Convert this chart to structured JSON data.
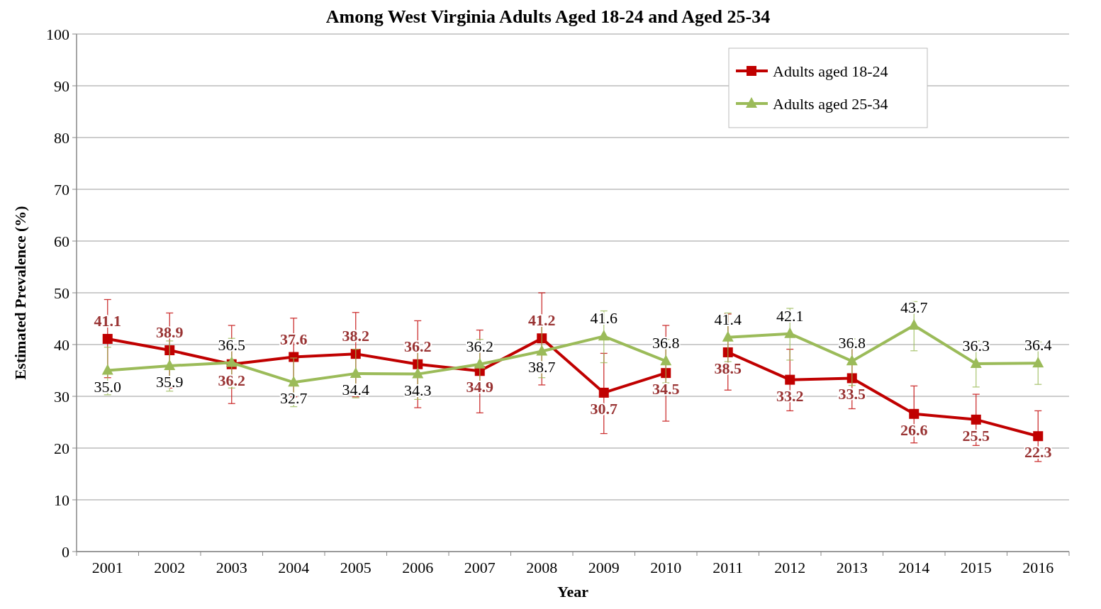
{
  "chart_data": {
    "type": "line",
    "title": "Among West Virginia Adults Aged 18-24 and Aged 25-34",
    "xlabel": "Year",
    "ylabel": "Estimated Prevalence (%)",
    "categories": [
      "2001",
      "2002",
      "2003",
      "2004",
      "2005",
      "2006",
      "2007",
      "2008",
      "2009",
      "2010",
      "2011",
      "2012",
      "2013",
      "2014",
      "2015",
      "2016"
    ],
    "series": [
      {
        "name": "Adults aged 18-24",
        "color": "#c00000",
        "marker": "square",
        "values": [
          41.1,
          38.9,
          36.2,
          37.6,
          38.2,
          36.2,
          34.9,
          41.2,
          30.7,
          34.5,
          null,
          null,
          null,
          null,
          null,
          null
        ],
        "value_labels": [
          "41.1",
          "38.9",
          "36.2",
          "37.6",
          "38.2",
          "36.2",
          "34.9",
          "41.2",
          "30.7",
          "34.5",
          null,
          null,
          null,
          null,
          null,
          null
        ],
        "errors": [
          [
            33.6,
            48.7
          ],
          [
            31.6,
            46.1
          ],
          [
            28.6,
            43.7
          ],
          [
            29.9,
            45.1
          ],
          [
            29.9,
            46.2
          ],
          [
            27.8,
            44.6
          ],
          [
            26.8,
            42.8
          ],
          [
            32.2,
            50.0
          ],
          [
            22.8,
            38.3
          ],
          [
            25.2,
            43.7
          ],
          null,
          null,
          null,
          null,
          null,
          null
        ]
      },
      {
        "color": "#c00000",
        "marker": "square",
        "values": [
          null,
          null,
          null,
          null,
          null,
          null,
          null,
          null,
          null,
          null,
          38.5,
          33.2,
          33.5,
          26.6,
          25.5,
          22.3
        ],
        "value_labels": [
          null,
          null,
          null,
          null,
          null,
          null,
          null,
          null,
          null,
          null,
          "38.5",
          "33.2",
          "33.5",
          "26.6",
          "25.5",
          "22.3"
        ],
        "errors": [
          null,
          null,
          null,
          null,
          null,
          null,
          null,
          null,
          null,
          null,
          [
            31.2,
            45.9
          ],
          [
            27.2,
            39.1
          ],
          [
            27.6,
            39.5
          ],
          [
            21.0,
            32.0
          ],
          [
            20.5,
            30.4
          ],
          [
            17.4,
            27.2
          ]
        ]
      },
      {
        "name": "Adults aged 25-34",
        "color": "#9bbb59",
        "marker": "triangle",
        "values": [
          35.0,
          35.9,
          36.5,
          32.7,
          34.4,
          34.3,
          36.2,
          38.7,
          41.6,
          36.8,
          null,
          null,
          null,
          null,
          null,
          null
        ],
        "value_labels": [
          "35.0",
          "35.9",
          "36.5",
          "32.7",
          "34.4",
          "34.3",
          "36.2",
          "38.7",
          "41.6",
          "36.8",
          null,
          null,
          null,
          null,
          null,
          null
        ],
        "errors": [
          [
            30.3,
            39.5
          ],
          [
            31.0,
            40.7
          ],
          [
            31.6,
            41.2
          ],
          [
            28.0,
            37.4
          ],
          [
            29.7,
            39.1
          ],
          [
            29.4,
            39.2
          ],
          [
            31.4,
            41.0
          ],
          [
            33.6,
            43.7
          ],
          [
            36.5,
            46.5
          ],
          [
            32.6,
            41.0
          ],
          null,
          null,
          null,
          null,
          null,
          null
        ]
      },
      {
        "color": "#9bbb59",
        "marker": "triangle",
        "values": [
          null,
          null,
          null,
          null,
          null,
          null,
          null,
          null,
          null,
          null,
          41.4,
          42.1,
          36.8,
          43.7,
          36.3,
          36.4
        ],
        "value_labels": [
          null,
          null,
          null,
          null,
          null,
          null,
          null,
          null,
          null,
          null,
          "41.4",
          "42.1",
          "36.8",
          "43.7",
          "36.3",
          "36.4"
        ],
        "errors": [
          null,
          null,
          null,
          null,
          null,
          null,
          null,
          null,
          null,
          null,
          [
            36.7,
            46.1
          ],
          [
            37.0,
            47.0
          ],
          [
            32.1,
            41.1
          ],
          [
            38.8,
            48.3
          ],
          [
            31.8,
            40.7
          ],
          [
            32.3,
            40.5
          ]
        ]
      }
    ],
    "ylim": [
      0,
      100
    ],
    "yticks": [
      0,
      10,
      20,
      30,
      40,
      50,
      60,
      70,
      80,
      90,
      100
    ],
    "grid": "y",
    "legend": "top right",
    "line_style": "solid"
  }
}
